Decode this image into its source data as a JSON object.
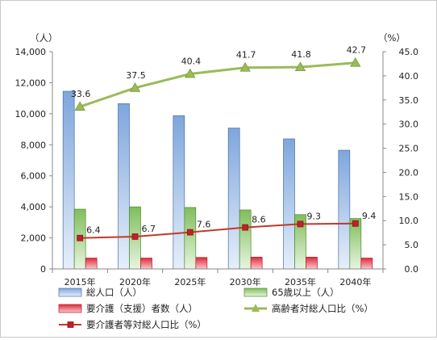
{
  "chart_data": {
    "type": "bar",
    "categories": [
      "2015年",
      "2020年",
      "2025年",
      "2030年",
      "2035年",
      "2040年"
    ],
    "left_unit": "（人）",
    "right_unit": "（%）",
    "left_ticks": [
      "0",
      "2,000",
      "4,000",
      "6,000",
      "8,000",
      "10,000",
      "12,000",
      "14,000"
    ],
    "right_ticks": [
      "0.0",
      "5.0",
      "10.0",
      "15.0",
      "20.0",
      "25.0",
      "30.0",
      "35.0",
      "40.0",
      "45.0"
    ],
    "ylim_left": [
      0,
      14000
    ],
    "ylim_right": [
      0,
      45
    ],
    "grid": false,
    "legend_position": "bottom",
    "series": [
      {
        "name": "総人口（人）",
        "type": "bar",
        "axis": "left",
        "color": "#8eb4e3",
        "values": [
          11450,
          10650,
          9880,
          9080,
          8380,
          7650
        ]
      },
      {
        "name": "65歳以上（人）",
        "type": "bar",
        "axis": "left",
        "color": "#8cc36c",
        "values": [
          3850,
          4000,
          3960,
          3800,
          3500,
          3250
        ]
      },
      {
        "name": "要介護（支援）者数（人）",
        "type": "bar",
        "axis": "left",
        "color": "#e03040",
        "values": [
          700,
          700,
          740,
          760,
          760,
          700
        ]
      },
      {
        "name": "高齢者対総人口比（%）",
        "type": "line",
        "axis": "right",
        "color": "#9bbb59",
        "values": [
          33.6,
          37.5,
          40.4,
          41.7,
          41.8,
          42.7
        ],
        "labels": [
          "33.6",
          "37.5",
          "40.4",
          "41.7",
          "41.8",
          "42.7"
        ]
      },
      {
        "name": "要介護者等対総人口比（%）",
        "type": "line",
        "axis": "right",
        "color": "#c0392b",
        "values": [
          6.4,
          6.7,
          7.6,
          8.6,
          9.3,
          9.4
        ],
        "labels": [
          "6.4",
          "6.7",
          "7.6",
          "8.6",
          "9.3",
          "9.4"
        ]
      }
    ]
  }
}
